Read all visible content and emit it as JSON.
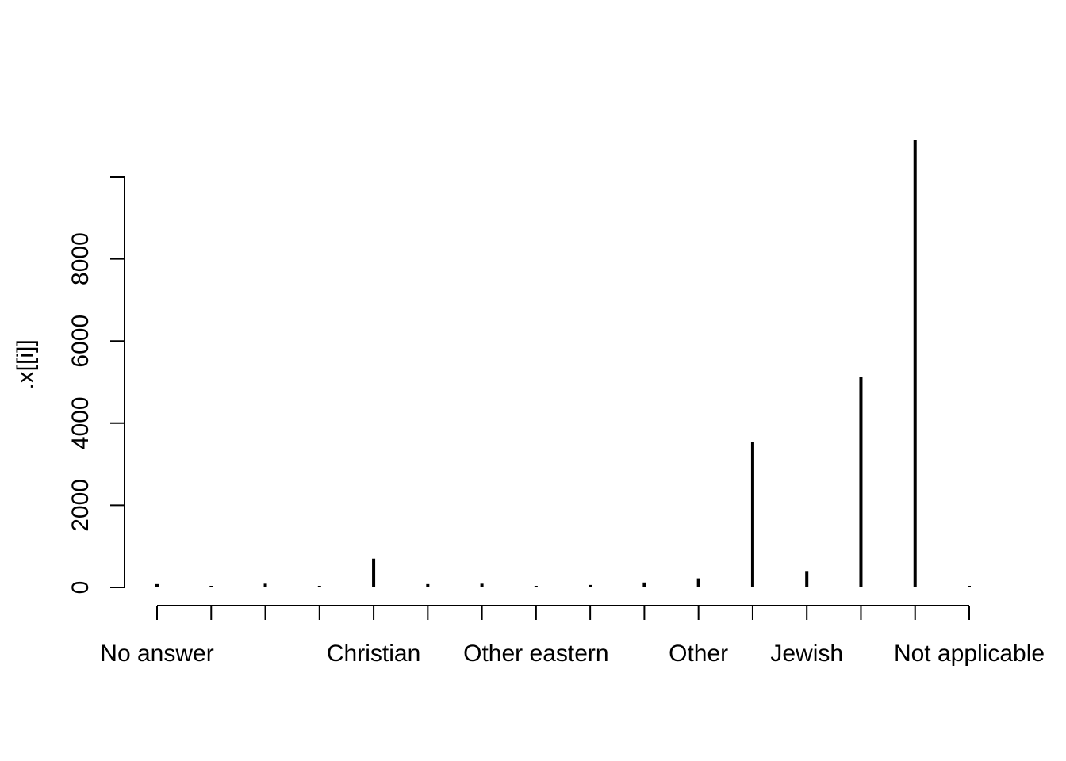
{
  "chart_data": {
    "type": "bar",
    "style": "histogram-spikes",
    "ylabel": ".x[[i]]",
    "xlabel": "",
    "title": "",
    "ylim": [
      0,
      10950
    ],
    "y_ticks": [
      0,
      2000,
      4000,
      6000,
      8000,
      10000
    ],
    "y_tick_labels": [
      "0",
      "2000",
      "4000",
      "6000",
      "8000",
      ""
    ],
    "categories": [
      "No answer",
      "",
      "",
      "",
      "Christian",
      "",
      "Other eastern",
      "",
      "",
      "",
      "Other",
      "",
      "Jewish",
      "",
      "Not applicable",
      ""
    ],
    "x_tick_labels": [
      {
        "index": 0,
        "label": "No answer"
      },
      {
        "index": 4,
        "label": "Christian"
      },
      {
        "index": 7,
        "label": "Other eastern"
      },
      {
        "index": 10,
        "label": "Other"
      },
      {
        "index": 12,
        "label": "Jewish"
      },
      {
        "index": 15,
        "label": "Not applicable"
      }
    ],
    "values": [
      80,
      30,
      90,
      20,
      700,
      80,
      90,
      30,
      60,
      120,
      220,
      3550,
      400,
      5130,
      10900,
      15
    ],
    "grid": false,
    "legend": "none"
  }
}
